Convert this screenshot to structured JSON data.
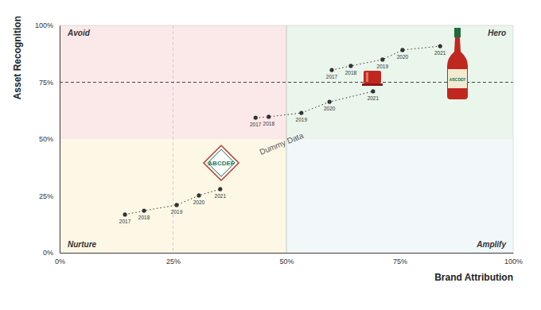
{
  "chart_data": {
    "type": "scatter",
    "x_label": "Brand Attribution",
    "y_label": "Asset Recognition",
    "xlim": [
      0,
      100
    ],
    "ylim": [
      0,
      100
    ],
    "xticks": [
      {
        "value": 0,
        "label": "0%"
      },
      {
        "value": 25,
        "label": "25%"
      },
      {
        "value": 50,
        "label": "50%"
      },
      {
        "value": 75,
        "label": "75%"
      },
      {
        "value": 100,
        "label": "100%"
      }
    ],
    "yticks": [
      {
        "value": 0,
        "label": "0%"
      },
      {
        "value": 25,
        "label": "25%"
      },
      {
        "value": 50,
        "label": "50%"
      },
      {
        "value": 75,
        "label": "75%"
      },
      {
        "value": 100,
        "label": "100%"
      }
    ],
    "quadrant_split": [
      50,
      50
    ],
    "reference_lines": {
      "x": 25,
      "y": 75
    },
    "quadrants": [
      "Avoid",
      "Hero",
      "Nurture",
      "Amplify"
    ],
    "annotations": [
      "Dummy Data"
    ],
    "series": [
      {
        "name": "ABCDEF",
        "color": "#333333",
        "marker": "circle",
        "line_style": "dotted",
        "x": [
          14.4,
          18.6,
          25.8,
          30.7,
          35.4
        ],
        "values": [
          16.8,
          18.5,
          21.0,
          25.2,
          28.0
        ],
        "point_labels": [
          "2017",
          "2018",
          "2019",
          "2020",
          "2021"
        ]
      },
      {
        "color": "#333333",
        "marker": "circle",
        "line_style": "dotted",
        "x": [
          43.2,
          46.1,
          53.3,
          59.5,
          69.1
        ],
        "values": [
          59.4,
          59.8,
          61.5,
          66.4,
          71.0
        ],
        "point_labels": [
          "2017",
          "2018",
          "2019",
          "2020",
          "2021"
        ]
      },
      {
        "color": "#333333",
        "marker": "circle",
        "line_style": "dotted",
        "x": [
          60.0,
          64.2,
          71.2,
          75.6,
          83.9
        ],
        "values": [
          80.4,
          82.2,
          85.0,
          89.2,
          90.9
        ],
        "point_labels": [
          "2017",
          "2018",
          "2019",
          "2020",
          "2021"
        ]
      }
    ]
  }
}
